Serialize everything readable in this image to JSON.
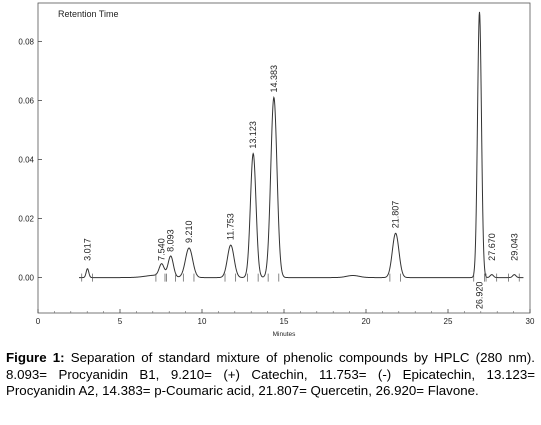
{
  "chart_data": {
    "type": "line",
    "title": "Retention Time",
    "xlabel": "Minutes",
    "ylabel": "",
    "xlim": [
      0,
      30
    ],
    "ylim": [
      -0.012,
      0.093
    ],
    "x_ticks": [
      {
        "value": 0,
        "label": "0"
      },
      {
        "value": 5,
        "label": "5"
      },
      {
        "value": 10,
        "label": "10"
      },
      {
        "value": 15,
        "label": "15"
      },
      {
        "value": 20,
        "label": "20"
      },
      {
        "value": 25,
        "label": "25"
      },
      {
        "value": 30,
        "label": "30"
      }
    ],
    "y_ticks": [
      {
        "value": 0.0,
        "label": "0.00"
      },
      {
        "value": 0.02,
        "label": "0.02"
      },
      {
        "value": 0.04,
        "label": "0.04"
      },
      {
        "value": 0.06,
        "label": "0.06"
      },
      {
        "value": 0.08,
        "label": "0.08"
      }
    ],
    "grid": false,
    "baseline": 0.0,
    "peaks": [
      {
        "rt": 3.017,
        "label": "3.017",
        "height": 0.003,
        "width": 0.08
      },
      {
        "rt": 7.54,
        "label": "7.540",
        "height": 0.004,
        "width": 0.15
      },
      {
        "rt": 8.093,
        "label": "8.093",
        "height": 0.007,
        "width": 0.16
      },
      {
        "rt": 9.21,
        "label": "9.210",
        "height": 0.01,
        "width": 0.22
      },
      {
        "rt": 11.753,
        "label": "11.753",
        "height": 0.011,
        "width": 0.2
      },
      {
        "rt": 13.123,
        "label": "13.123",
        "height": 0.042,
        "width": 0.17
      },
      {
        "rt": 14.383,
        "label": "14.383",
        "height": 0.061,
        "width": 0.19
      },
      {
        "rt": 21.807,
        "label": "21.807",
        "height": 0.015,
        "width": 0.2
      },
      {
        "rt": 26.92,
        "label": "26.920",
        "height": 0.09,
        "width": 0.12
      },
      {
        "rt": 27.67,
        "label": "27.670",
        "height": 0.001,
        "width": 0.1
      },
      {
        "rt": 29.043,
        "label": "29.043",
        "height": 0.001,
        "width": 0.1
      }
    ],
    "line_color": "#333333"
  },
  "caption": {
    "label": "Figure 1:",
    "text": " Separation of standard mixture of phenolic compounds by HPLC (280 nm). 8.093= Procyanidin B1, 9.210= (+) Catechin, 11.753= (-) Epicatechin, 13.123= Procyanidin A2, 14.383= p-Coumaric acid, 21.807= Quercetin, 26.920= Flavone."
  }
}
